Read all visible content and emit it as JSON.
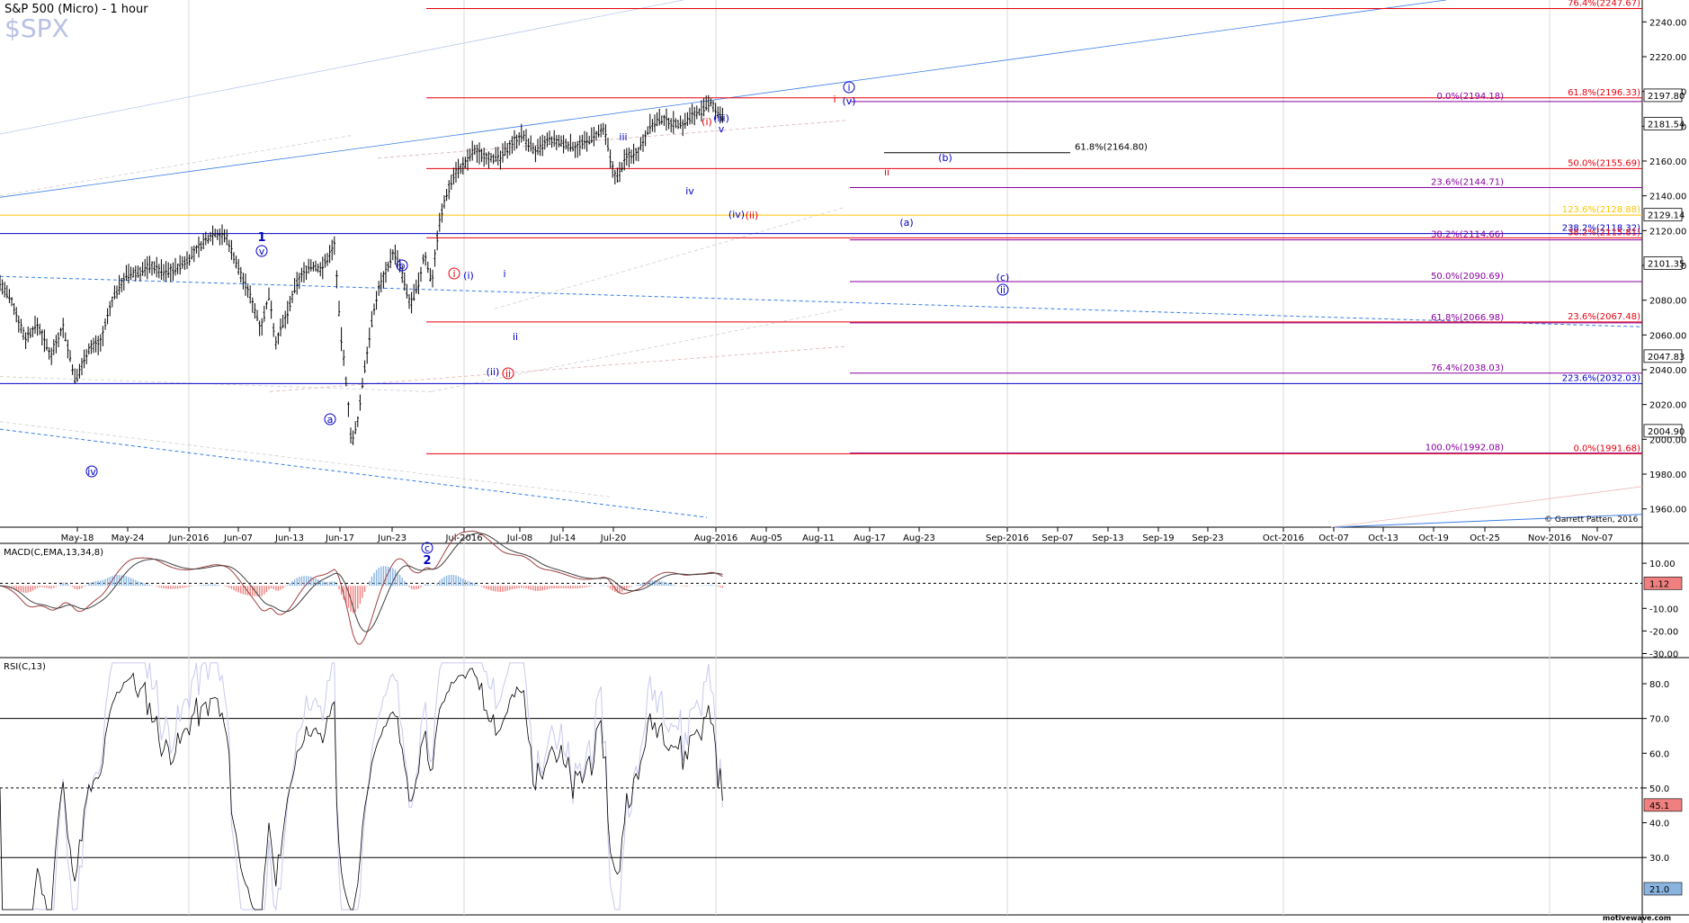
{
  "header": {
    "title": "S&P 500 (Micro) - 1 hour",
    "symbol": "$SPX"
  },
  "copyright": "© Garrett Patten, 2016",
  "watermark": "motivewave.com",
  "colors": {
    "red": "#e8000b",
    "blue": "#0000c8",
    "purple": "#8800a0",
    "yellow": "#ffc400",
    "lightblue": "#3b7de8"
  },
  "chart_data": [
    {
      "panel": "price",
      "type": "candlestick",
      "ylim": [
        1950,
        2250
      ],
      "y_ticks": [
        1960,
        1980,
        2000,
        2020,
        2040,
        2060,
        2080,
        2100,
        2120,
        2140,
        2160,
        2180,
        2200,
        2220,
        2240
      ],
      "x_ticks": [
        "May-18",
        "May-24",
        "Jun-2016",
        "Jun-07",
        "Jun-13",
        "Jun-17",
        "Jun-23",
        "Jul-2016",
        "Jul-08",
        "Jul-14",
        "Jul-20",
        "Aug-2016",
        "Aug-05",
        "Aug-11",
        "Aug-17",
        "Aug-23",
        "Sep-2016",
        "Sep-07",
        "Sep-13",
        "Sep-19",
        "Sep-23",
        "Oct-2016",
        "Oct-07",
        "Oct-13",
        "Oct-19",
        "Oct-25",
        "Nov-2016",
        "Nov-07"
      ],
      "price_path": [
        [
          0,
          2090
        ],
        [
          14,
          2078
        ],
        [
          28,
          2058
        ],
        [
          42,
          2066
        ],
        [
          56,
          2048
        ],
        [
          70,
          2065
        ],
        [
          84,
          2033
        ],
        [
          98,
          2052
        ],
        [
          112,
          2056
        ],
        [
          126,
          2082
        ],
        [
          140,
          2094
        ],
        [
          154,
          2096
        ],
        [
          168,
          2100
        ],
        [
          182,
          2096
        ],
        [
          196,
          2098
        ],
        [
          210,
          2104
        ],
        [
          224,
          2112
        ],
        [
          238,
          2119
        ],
        [
          252,
          2116
        ],
        [
          266,
          2097
        ],
        [
          280,
          2080
        ],
        [
          290,
          2064
        ],
        [
          300,
          2084
        ],
        [
          306,
          2055
        ],
        [
          320,
          2073
        ],
        [
          330,
          2090
        ],
        [
          344,
          2100
        ],
        [
          358,
          2098
        ],
        [
          372,
          2112
        ],
        [
          378,
          2065
        ],
        [
          386,
          2028
        ],
        [
          391,
          1996
        ],
        [
          398,
          2011
        ],
        [
          404,
          2036
        ],
        [
          412,
          2063
        ],
        [
          420,
          2085
        ],
        [
          430,
          2098
        ],
        [
          438,
          2108
        ],
        [
          446,
          2097
        ],
        [
          456,
          2077
        ],
        [
          466,
          2090
        ],
        [
          472,
          2107
        ],
        [
          480,
          2090
        ],
        [
          488,
          2123
        ],
        [
          496,
          2140
        ],
        [
          506,
          2154
        ],
        [
          516,
          2157
        ],
        [
          526,
          2166
        ],
        [
          540,
          2163
        ],
        [
          556,
          2161
        ],
        [
          568,
          2170
        ],
        [
          580,
          2175
        ],
        [
          596,
          2165
        ],
        [
          610,
          2172
        ],
        [
          626,
          2170
        ],
        [
          640,
          2168
        ],
        [
          652,
          2171
        ],
        [
          664,
          2175
        ],
        [
          672,
          2178
        ],
        [
          680,
          2157
        ],
        [
          686,
          2150
        ],
        [
          696,
          2162
        ],
        [
          710,
          2166
        ],
        [
          722,
          2180
        ],
        [
          736,
          2184
        ],
        [
          748,
          2182
        ],
        [
          760,
          2181
        ],
        [
          770,
          2187
        ],
        [
          782,
          2189
        ],
        [
          790,
          2194
        ],
        [
          796,
          2189
        ],
        [
          806,
          2183
        ]
      ],
      "candle_step_px": 2.6,
      "current_price": "2181.54",
      "price_labels": [
        "2197.80",
        "2181.54",
        "2129.14",
        "2101.35",
        "2047.83",
        "2004.90"
      ],
      "fib_levels": [
        {
          "label": "76.4%(2247.67)",
          "color": "red"
        },
        {
          "label": "61.8%(2196.33)",
          "color": "red"
        },
        {
          "label": "0.0%(2194.18)",
          "color": "purple"
        },
        {
          "label": "61.8%(2164.80)",
          "color": "black"
        },
        {
          "label": "50.0%(2155.69)",
          "color": "red"
        },
        {
          "label": "23.6%(2144.71)",
          "color": "purple"
        },
        {
          "label": "123.6%(2128.88)",
          "color": "yellow"
        },
        {
          "label": "238.2%(2118.32)",
          "color": "blue"
        },
        {
          "label": "38.2%(2114.66)",
          "color": "purple"
        },
        {
          "label": "38.2%(2115.81)",
          "color": "red"
        },
        {
          "label": "50.0%(2090.69)",
          "color": "purple"
        },
        {
          "label": "61.8%(2066.98)",
          "color": "purple"
        },
        {
          "label": "23.6%(2067.48)",
          "color": "red"
        },
        {
          "label": "76.4%(2038.03)",
          "color": "purple"
        },
        {
          "label": "223.6%(2032.03)",
          "color": "blue"
        },
        {
          "label": "100.0%(1992.08)",
          "color": "purple"
        },
        {
          "label": "0.0%(1991.68)",
          "color": "red"
        }
      ],
      "wave_labels": [
        {
          "text": "1",
          "color": "blue",
          "bold": true
        },
        {
          "text": "v",
          "color": "blue",
          "circle": true
        },
        {
          "text": "iv",
          "color": "blue",
          "circle": true
        },
        {
          "text": "a",
          "color": "blue",
          "circle": true
        },
        {
          "text": "b",
          "color": "blue",
          "circle": true
        },
        {
          "text": "c",
          "color": "blue",
          "circle": true
        },
        {
          "text": "2",
          "color": "blue",
          "bold": true
        },
        {
          "text": "i",
          "color": "red",
          "circle": true
        },
        {
          "text": "(i)",
          "color": "blue"
        },
        {
          "text": "i",
          "color": "blue"
        },
        {
          "text": "ii",
          "color": "blue"
        },
        {
          "text": "(ii)",
          "color": "blue"
        },
        {
          "text": "ii",
          "color": "red",
          "circle": true
        },
        {
          "text": "iii",
          "color": "blue"
        },
        {
          "text": "iv",
          "color": "blue"
        },
        {
          "text": "(i)",
          "color": "red"
        },
        {
          "text": "(iii)",
          "color": "blue"
        },
        {
          "text": "v",
          "color": "blue"
        },
        {
          "text": "(iv)",
          "color": "blue"
        },
        {
          "text": "(ii)",
          "color": "red"
        },
        {
          "text": "i",
          "color": "red"
        },
        {
          "text": "(v)",
          "color": "blue"
        },
        {
          "text": "i",
          "color": "blue",
          "circle": true
        },
        {
          "text": "ii",
          "color": "red"
        },
        {
          "text": "(b)",
          "color": "blue"
        },
        {
          "text": "(a)",
          "color": "blue"
        },
        {
          "text": "(c)",
          "color": "blue"
        },
        {
          "text": "ii",
          "color": "blue",
          "circle": true
        }
      ]
    },
    {
      "panel": "macd",
      "type": "line+histogram",
      "label": "MACD(C,EMA,13,34,8)",
      "y_ticks": [
        "10.00",
        "-10.00",
        "-20.00",
        "-30.00"
      ],
      "current_value": "1.12",
      "ylim": [
        -31,
        18
      ]
    },
    {
      "panel": "rsi",
      "type": "line",
      "label": "RSI(C,13)",
      "y_ticks": [
        "80.0",
        "70.0",
        "60.0",
        "50.0",
        "40.0",
        "30.0"
      ],
      "levels": [
        70,
        50,
        30
      ],
      "current_value": "45.1",
      "current_label_2": "21.0",
      "ylim": [
        14,
        87
      ]
    }
  ]
}
